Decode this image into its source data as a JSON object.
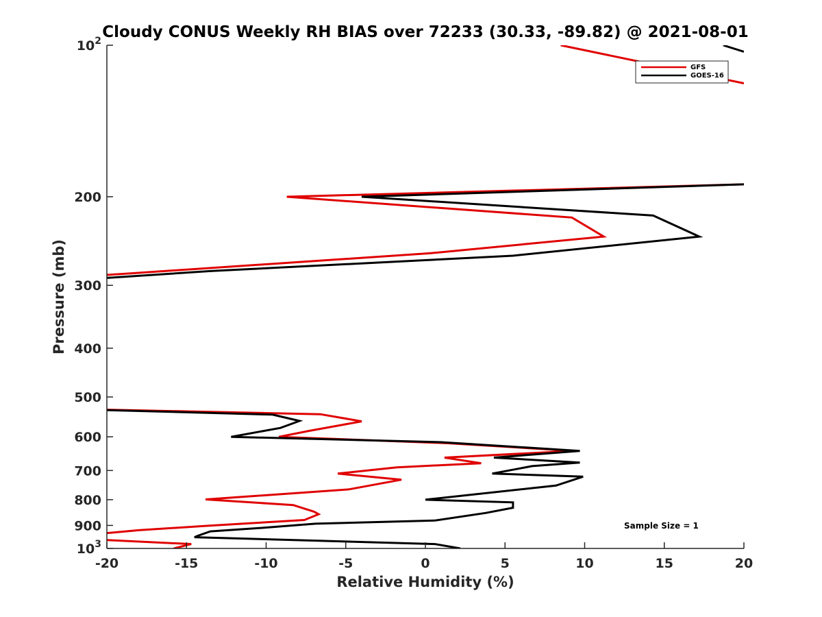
{
  "chart_data": {
    "type": "line",
    "title": "Cloudy CONUS Weekly RH BIAS over 72233 (30.33, -89.82) @ 2021-08-01",
    "xlabel": "Relative Humidity (%)",
    "ylabel": "Pressure (mb)",
    "xlim": [
      -20,
      20
    ],
    "ylim": [
      100,
      1000
    ],
    "yscale": "log",
    "y_reversed": true,
    "x_ticks": [
      -20,
      -15,
      -10,
      -5,
      0,
      5,
      10,
      15,
      20
    ],
    "x_tick_labels": [
      "-20",
      "-15",
      "-10",
      "-5",
      "0",
      "5",
      "10",
      "15",
      "20"
    ],
    "y_ticks": [
      100,
      200,
      300,
      400,
      500,
      600,
      700,
      800,
      900,
      1000
    ],
    "y_tick_labels": [
      {
        "base": "10",
        "exp": "2"
      },
      {
        "base": "200",
        "exp": ""
      },
      {
        "base": "300",
        "exp": ""
      },
      {
        "base": "400",
        "exp": ""
      },
      {
        "base": "500",
        "exp": ""
      },
      {
        "base": "600",
        "exp": ""
      },
      {
        "base": "700",
        "exp": ""
      },
      {
        "base": "800",
        "exp": ""
      },
      {
        "base": "900",
        "exp": ""
      },
      {
        "base": "10",
        "exp": "3"
      }
    ],
    "legend_position": "top-right",
    "annotation": "Sample Size = 1",
    "series": [
      {
        "name": "GFS",
        "color": "#e00000",
        "segments": [
          [
            [
              8.5,
              100
            ],
            [
              20,
              119
            ]
          ],
          [
            [
              20,
              189
            ],
            [
              -8.7,
              200
            ],
            [
              9.2,
              220
            ],
            [
              11.2,
              240
            ],
            [
              0.3,
              259
            ],
            [
              -18.5,
              284
            ],
            [
              -20,
              286
            ]
          ],
          [
            [
              -20,
              530
            ],
            [
              -6.6,
              541
            ],
            [
              -4.0,
              559
            ],
            [
              -7.3,
              584
            ],
            [
              -9.2,
              600
            ],
            [
              1.5,
              618
            ],
            [
              9.3,
              640
            ],
            [
              1.2,
              660
            ],
            [
              3.5,
              677
            ],
            [
              -1.8,
              690
            ],
            [
              -5.5,
              710
            ],
            [
              -1.5,
              730
            ],
            [
              -4.8,
              763
            ],
            [
              -13.8,
              799
            ],
            [
              -8.3,
              820
            ],
            [
              -7.0,
              845
            ],
            [
              -6.7,
              855
            ],
            [
              -7.6,
              878
            ],
            [
              -13.8,
              902
            ],
            [
              -18.0,
              920
            ],
            [
              -20,
              932
            ]
          ],
          [
            [
              -20,
              962
            ],
            [
              -14.7,
              980
            ],
            [
              -15.8,
              1000
            ]
          ]
        ]
      },
      {
        "name": "GOES-16",
        "color": "#000000",
        "segments": [
          [
            [
              18.7,
              100
            ],
            [
              20,
              103
            ]
          ],
          [
            [
              20,
              189
            ],
            [
              -4.0,
              200
            ],
            [
              14.3,
              218
            ],
            [
              17.2,
              240
            ],
            [
              5.5,
              262
            ],
            [
              -13.5,
              281
            ],
            [
              -20,
              290
            ]
          ],
          [
            [
              -20,
              531
            ],
            [
              -9.6,
              542
            ],
            [
              -7.9,
              558
            ],
            [
              -9.1,
              576
            ],
            [
              -12.2,
              600
            ],
            [
              1.0,
              615
            ],
            [
              9.7,
              640
            ],
            [
              4.3,
              660
            ],
            [
              9.7,
              675
            ],
            [
              6.7,
              686
            ],
            [
              4.2,
              710
            ],
            [
              9.9,
              720
            ],
            [
              8.2,
              750
            ],
            [
              0.0,
              800
            ],
            [
              5.5,
              810
            ],
            [
              5.5,
              830
            ],
            [
              3.8,
              850
            ],
            [
              0.6,
              880
            ],
            [
              -6.9,
              893
            ],
            [
              -10.2,
              910
            ],
            [
              -13.5,
              925
            ],
            [
              -14.3,
              944
            ],
            [
              -14.5,
              950
            ],
            [
              0.6,
              980
            ],
            [
              2.2,
              1000
            ]
          ]
        ]
      }
    ]
  }
}
